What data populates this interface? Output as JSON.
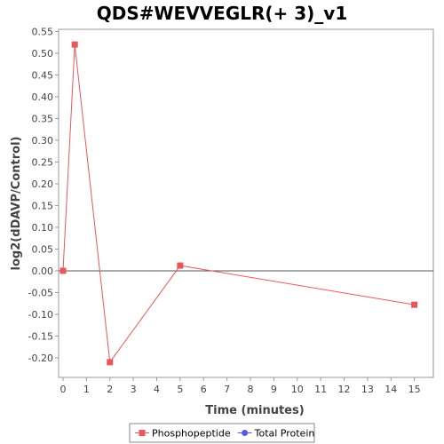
{
  "chart_data": {
    "type": "line",
    "title": "QDS#WEVVEGLR(+ 3)_v1",
    "xlabel": "Time (minutes)",
    "ylabel": "log2(dDAVP/Control)",
    "xlim": [
      0,
      16
    ],
    "ylim": [
      -0.245,
      0.555
    ],
    "x_ticks": [
      0,
      1,
      2,
      3,
      4,
      5,
      6,
      7,
      8,
      9,
      10,
      11,
      12,
      13,
      14,
      15
    ],
    "y_ticks": [
      0.55,
      0.5,
      0.45,
      0.4,
      0.35,
      0.3,
      0.25,
      0.2,
      0.15,
      0.1,
      0.05,
      0.0,
      -0.05,
      -0.1,
      -0.15,
      -0.2
    ],
    "y_tick_labels": [
      "0.55",
      "0.50",
      "0.45",
      "0.40",
      "0.35",
      "0.30",
      "0.25",
      "0.20",
      "0.15",
      "0.10",
      "0.05",
      "0.00",
      "-0.05",
      "-0.10",
      "-0.15",
      "-0.20"
    ],
    "zero_line": true,
    "grid": false,
    "legend_position": "bottom",
    "series": [
      {
        "name": "Phosphopeptide",
        "color": "#e8585a",
        "marker": "square",
        "x": [
          0,
          0.5,
          2,
          5,
          15
        ],
        "y": [
          0.0,
          0.52,
          -0.21,
          0.012,
          -0.078
        ]
      },
      {
        "name": "Total Protein",
        "color": "#5a5ae8",
        "marker": "circle",
        "x": [],
        "y": []
      }
    ]
  }
}
